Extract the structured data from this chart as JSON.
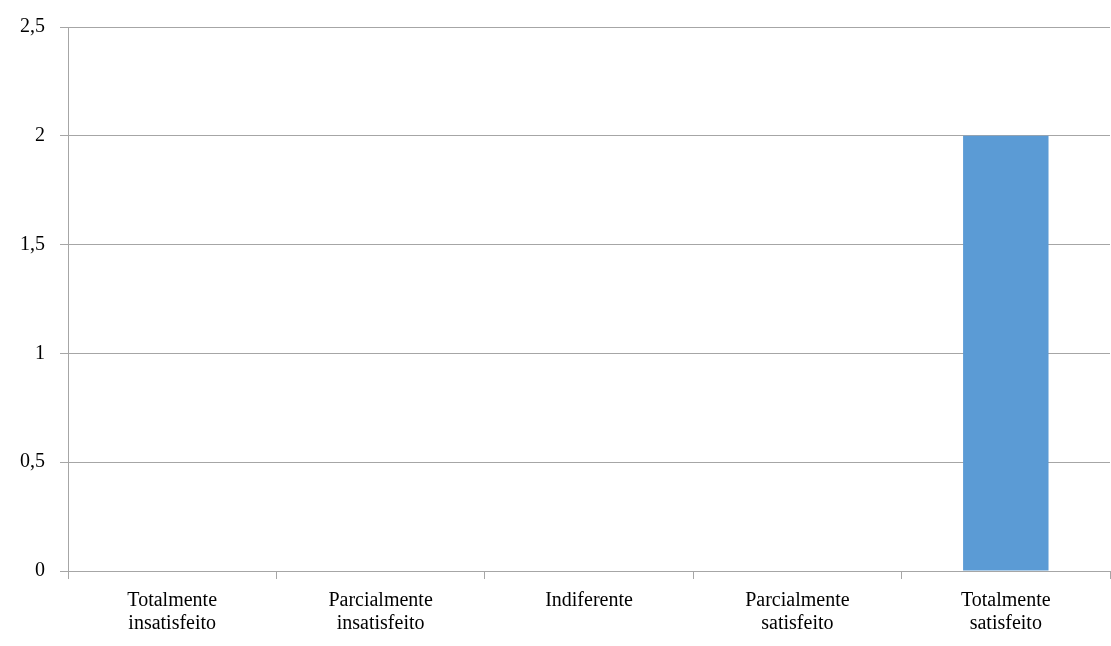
{
  "chart_data": {
    "type": "bar",
    "categories": [
      "Totalmente insatisfeito",
      "Parcialmente insatisfeito",
      "Indiferente",
      "Parcialmente satisfeito",
      "Totalmente satisfeito"
    ],
    "values": [
      0,
      0,
      0,
      0,
      2
    ],
    "color": "#5b9bd5",
    "ylim": [
      0,
      2.5
    ],
    "yticks": [
      0,
      {
        "value": 0.5,
        "label": "0,5"
      },
      1,
      {
        "value": 1.5,
        "label": "1,5"
      },
      2,
      {
        "value": 2.5,
        "label": "2,5"
      }
    ],
    "grid": "y"
  }
}
